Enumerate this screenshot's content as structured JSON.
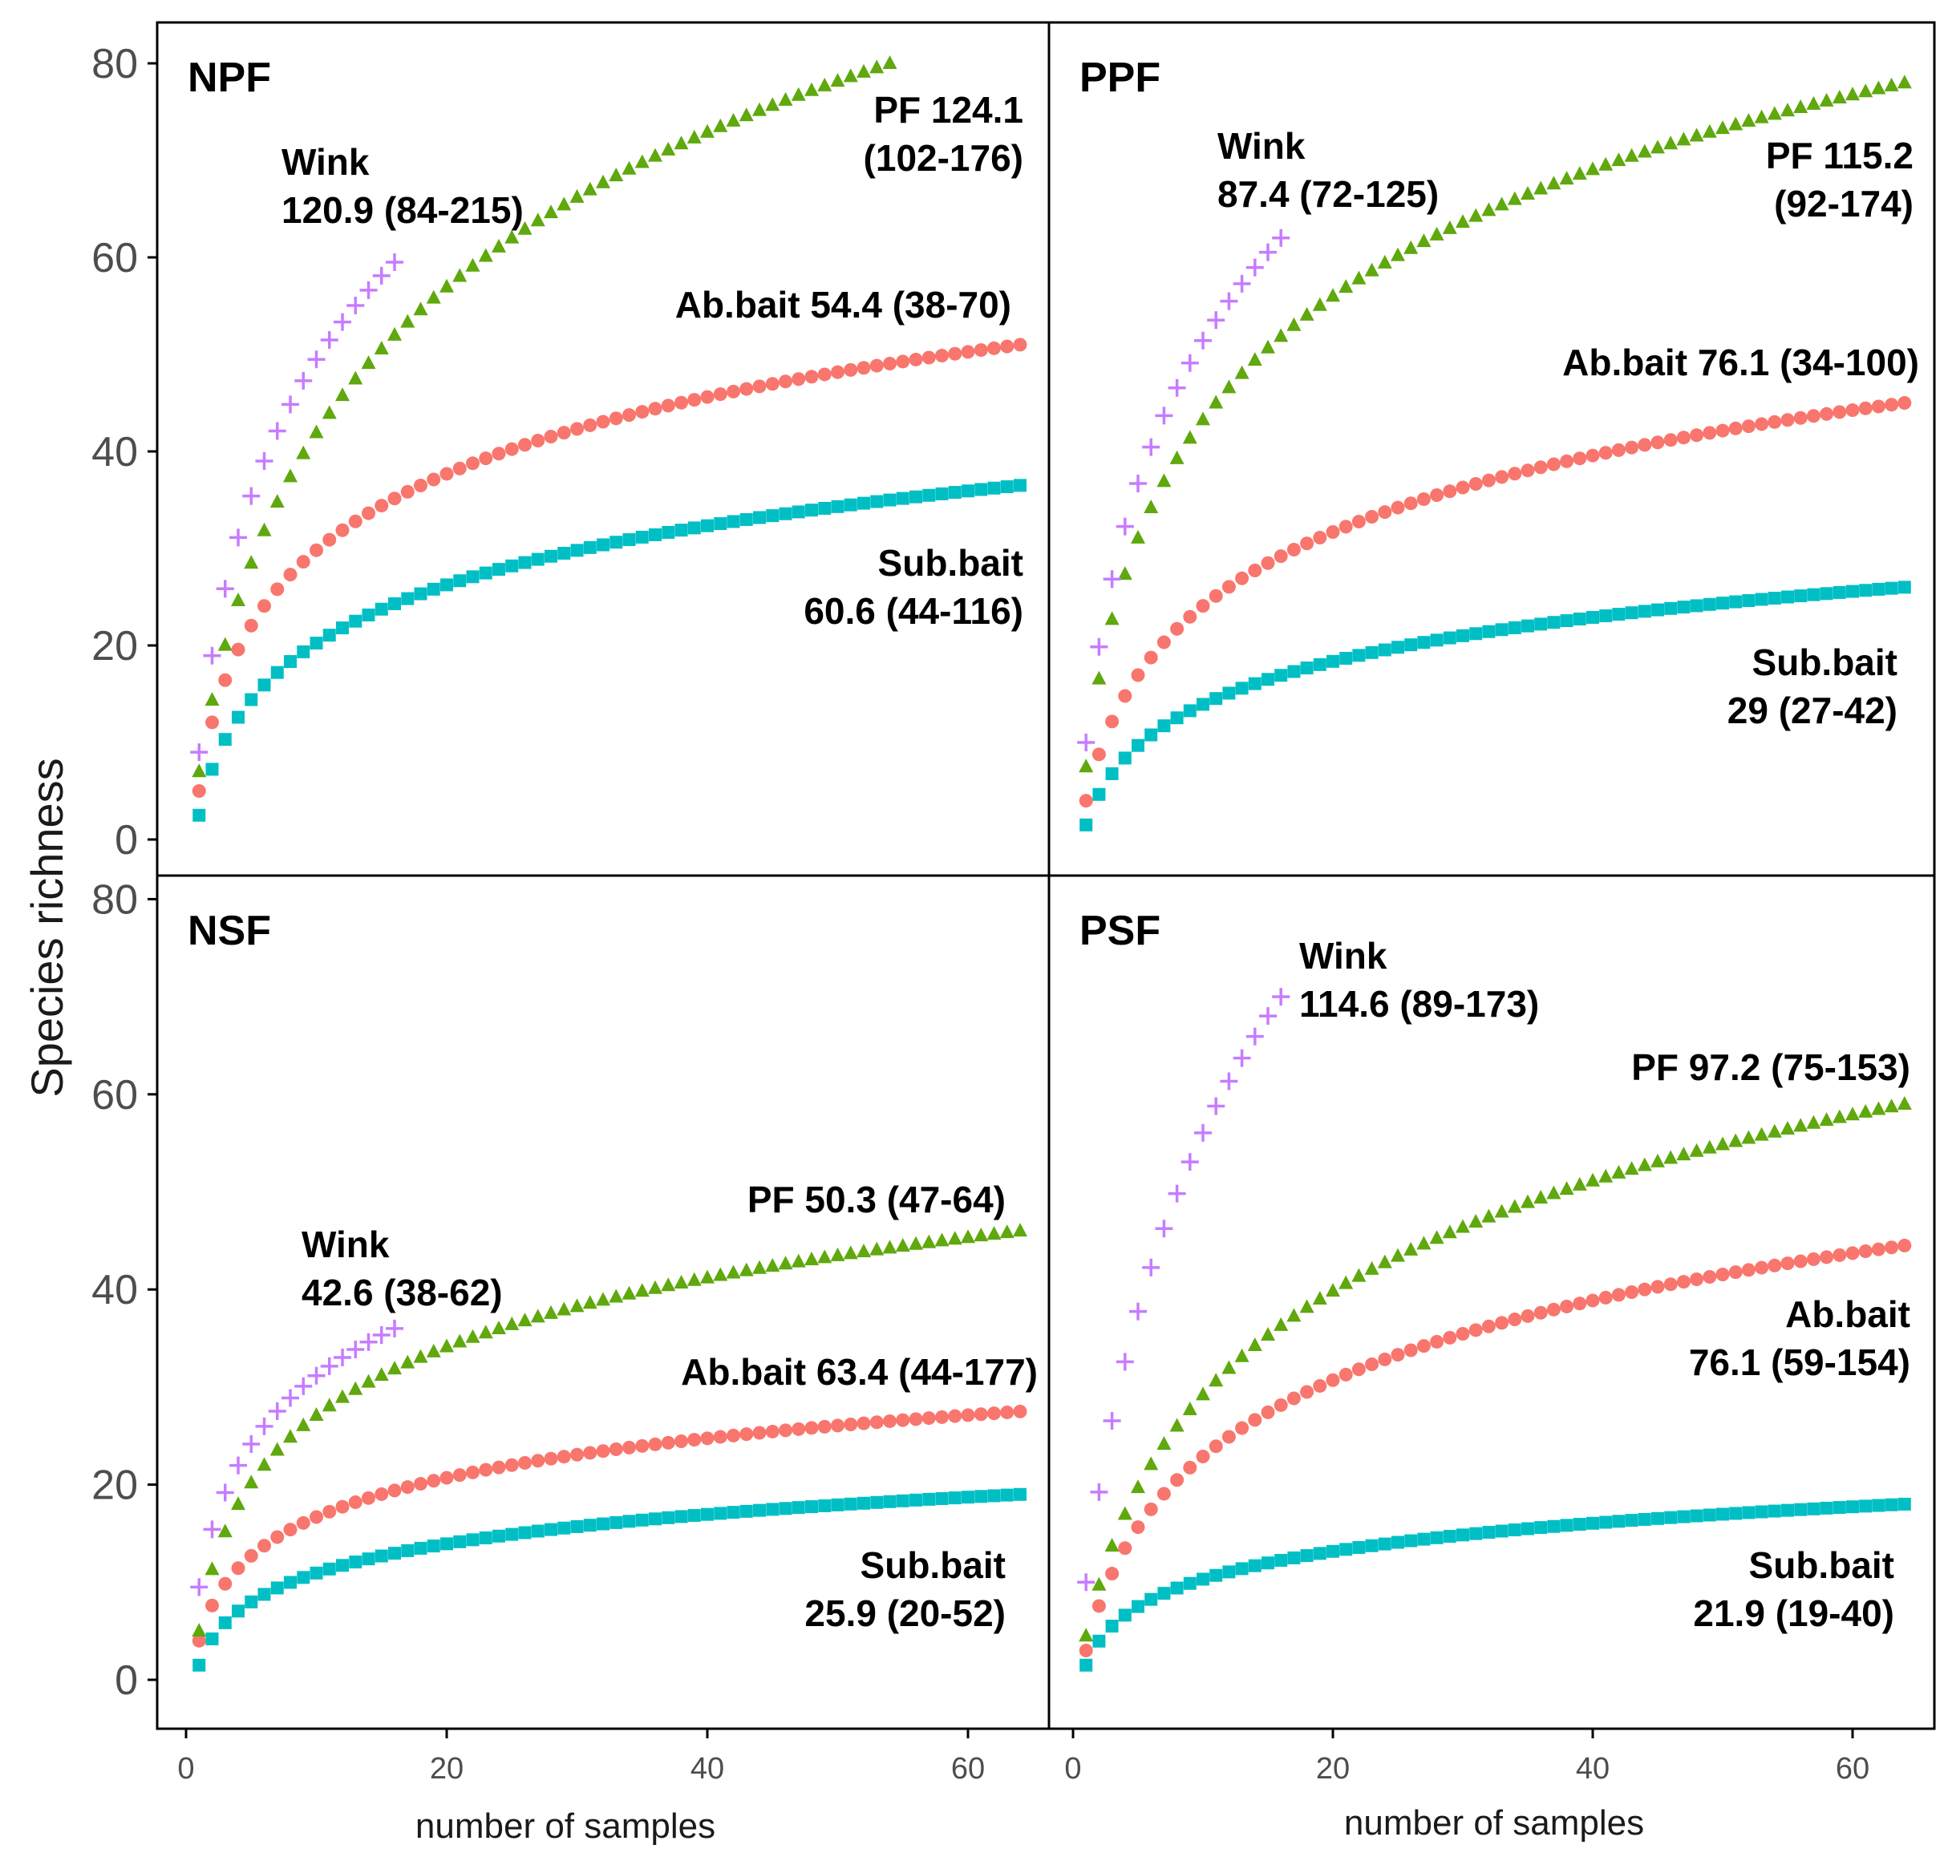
{
  "chart_data": {
    "type": "scatter",
    "ylabel": "Species richness",
    "xlabel": "number of samples",
    "xlim": [
      -2,
      65
    ],
    "ylim": [
      -4,
      84
    ],
    "x_ticks": [
      "0",
      "20",
      "40",
      "60"
    ],
    "y_ticks": [
      "0",
      "20",
      "40",
      "60",
      "80"
    ],
    "colors": {
      "Ab.bait": "#f8766d",
      "PF": "#5fa80d",
      "Sub.bait": "#00bfc4",
      "Wink": "#c77cff"
    },
    "panels": [
      {
        "title": "NPF",
        "series": [
          {
            "name": "Wink",
            "marker": "plus",
            "n": 16,
            "start": 9,
            "end": 59.5,
            "k": 0.55
          },
          {
            "name": "PF",
            "marker": "triangle",
            "n": 54,
            "start": 7,
            "end": 80,
            "k": 0.35
          },
          {
            "name": "Ab.bait",
            "marker": "circle",
            "n": 64,
            "start": 5,
            "end": 51,
            "k": 0.85
          },
          {
            "name": "Sub.bait",
            "marker": "square",
            "n": 64,
            "start": 2.5,
            "end": 36.5,
            "k": 0.7
          }
        ],
        "annotations": [
          {
            "series": "Wink",
            "lines": [
              "Wink",
              "120.9 (84-215)"
            ]
          },
          {
            "series": "PF",
            "lines": [
              "PF 124.1",
              "(102-176)"
            ]
          },
          {
            "series": "Ab.bait",
            "lines": [
              "Ab.bait  54.4 (38-70)"
            ]
          },
          {
            "series": "Sub.bait",
            "lines": [
              "Sub.bait",
              "60.6 (44-116)"
            ]
          }
        ]
      },
      {
        "title": "PPF",
        "series": [
          {
            "name": "Wink",
            "marker": "plus",
            "n": 16,
            "start": 10,
            "end": 62,
            "k": 0.5
          },
          {
            "name": "PF",
            "marker": "triangle",
            "n": 64,
            "start": 7.5,
            "end": 78,
            "k": 0.6
          },
          {
            "name": "Ab.bait",
            "marker": "circle",
            "n": 64,
            "start": 4,
            "end": 45,
            "k": 0.5
          },
          {
            "name": "Sub.bait",
            "marker": "square",
            "n": 64,
            "start": 1.5,
            "end": 26,
            "k": 0.6
          }
        ],
        "annotations": [
          {
            "series": "Wink",
            "lines": [
              "Wink",
              "87.4 (72-125)"
            ]
          },
          {
            "series": "PF",
            "lines": [
              "PF 115.2",
              "(92-174)"
            ]
          },
          {
            "series": "Ab.bait",
            "lines": [
              "Ab.bait 76.1 (34-100)"
            ]
          },
          {
            "series": "Sub.bait",
            "lines": [
              "Sub.bait",
              "29 (27-42)"
            ]
          }
        ]
      },
      {
        "title": "NSF",
        "series": [
          {
            "name": "Wink",
            "marker": "plus",
            "n": 16,
            "start": 9.5,
            "end": 36,
            "k": 0.75
          },
          {
            "name": "PF",
            "marker": "triangle",
            "n": 64,
            "start": 5,
            "end": 46,
            "k": 0.85
          },
          {
            "name": "Ab.bait",
            "marker": "circle",
            "n": 64,
            "start": 4,
            "end": 27.5,
            "k": 0.85
          },
          {
            "name": "Sub.bait",
            "marker": "square",
            "n": 64,
            "start": 1.5,
            "end": 19,
            "k": 0.85
          }
        ],
        "annotations": [
          {
            "series": "Wink",
            "lines": [
              "Wink",
              "42.6 (38-62)"
            ]
          },
          {
            "series": "PF",
            "lines": [
              "PF 50.3 (47-64)"
            ]
          },
          {
            "series": "Ab.bait",
            "lines": [
              "Ab.bait 63.4 (44-177)"
            ]
          },
          {
            "series": "Sub.bait",
            "lines": [
              "Sub.bait",
              "25.9 (20-52)"
            ]
          }
        ]
      },
      {
        "title": "PSF",
        "series": [
          {
            "name": "Wink",
            "marker": "plus",
            "n": 16,
            "start": 10,
            "end": 70,
            "k": 0.3
          },
          {
            "name": "PF",
            "marker": "triangle",
            "n": 64,
            "start": 4.5,
            "end": 59,
            "k": 0.35
          },
          {
            "name": "Ab.bait",
            "marker": "circle",
            "n": 64,
            "start": 3,
            "end": 44.5,
            "k": 0.45
          },
          {
            "name": "Sub.bait",
            "marker": "square",
            "n": 64,
            "start": 1.5,
            "end": 18,
            "k": 0.8
          }
        ],
        "annotations": [
          {
            "series": "Wink",
            "lines": [
              "Wink",
              "114.6 (89-173)"
            ]
          },
          {
            "series": "PF",
            "lines": [
              "PF 97.2 (75-153)"
            ]
          },
          {
            "series": "Ab.bait",
            "lines": [
              "Ab.bait",
              "76.1 (59-154)"
            ]
          },
          {
            "series": "Sub.bait",
            "lines": [
              "Sub.bait",
              "21.9 (19-40)"
            ]
          }
        ]
      }
    ]
  }
}
